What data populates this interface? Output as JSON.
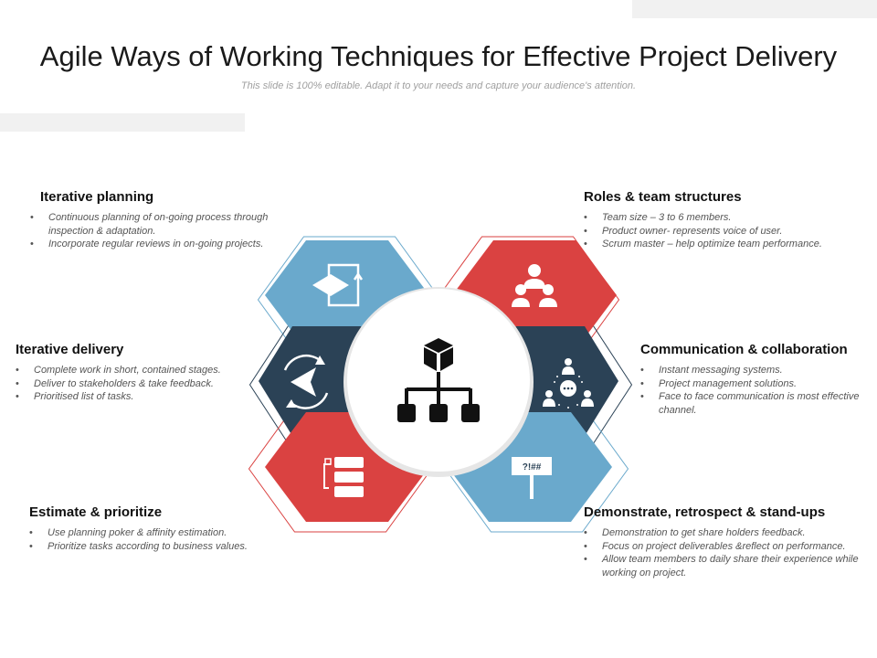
{
  "header": {
    "title": "Agile Ways of Working Techniques for Effective Project Delivery",
    "subtitle": "This slide is 100% editable. Adapt it to your needs and capture your audience's attention."
  },
  "colors": {
    "blue": "#6aa9cc",
    "red": "#da4241",
    "navy": "#2b4256",
    "white": "#ffffff",
    "outline": "#b0b0b0"
  },
  "center": {
    "icon": "hierarchy-structure-icon"
  },
  "segments": [
    {
      "id": "iterative-planning",
      "heading": "Iterative planning",
      "bullets": [
        "Continuous planning of on-going process through inspection & adaptation.",
        "Incorporate regular reviews in on-going projects."
      ],
      "icon": "flowchart-icon",
      "color": "blue"
    },
    {
      "id": "iterative-delivery",
      "heading": "Iterative delivery",
      "bullets": [
        "Complete work in short, contained stages.",
        "Deliver to stakeholders & take feedback.",
        "Prioritised list of tasks."
      ],
      "icon": "cycle-arrow-icon",
      "color": "navy"
    },
    {
      "id": "estimate-prioritize",
      "heading": "Estimate & prioritize",
      "bullets": [
        "Use planning poker & affinity estimation.",
        "Prioritize tasks according to business values."
      ],
      "icon": "task-list-icon",
      "color": "red"
    },
    {
      "id": "roles-team",
      "heading": "Roles & team structures",
      "bullets": [
        "Team size – 3 to 6 members.",
        "Product owner- represents voice of user.",
        "Scrum master – help optimize team performance."
      ],
      "icon": "team-group-icon",
      "color": "red"
    },
    {
      "id": "communication",
      "heading": "Communication & collaboration",
      "bullets": [
        "Instant messaging systems.",
        "Project management solutions.",
        "Face to face communication is most effective channel."
      ],
      "icon": "people-chat-icon",
      "color": "navy"
    },
    {
      "id": "demonstrate",
      "heading": "Demonstrate, retrospect & stand-ups",
      "bullets": [
        "Demonstration to get share holders feedback.",
        "Focus on project deliverables &reflect on performance.",
        "Allow team members to daily share their experience while working on project."
      ],
      "icon": "sign-board-icon",
      "sign_text": "?!##",
      "color": "blue"
    }
  ]
}
